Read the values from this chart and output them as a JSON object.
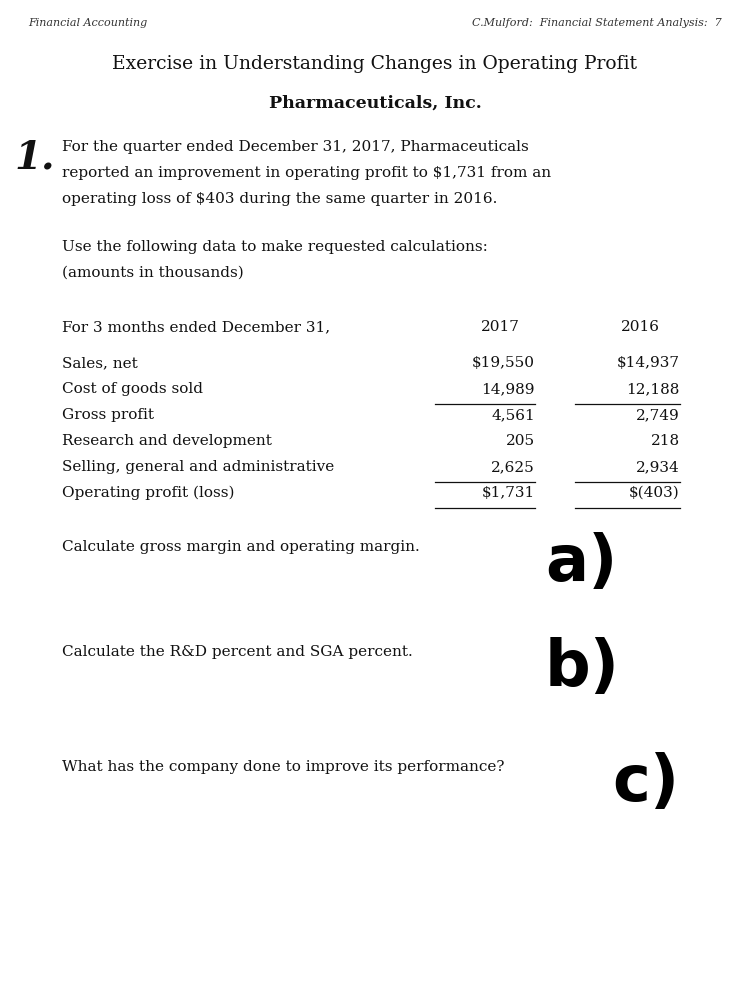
{
  "bg_color": "#ffffff",
  "header_left": "Financial Accounting",
  "header_right": "C.Mulford:  Financial Statement Analysis:  7",
  "title1": "Exercise in Understanding Changes in Operating Profit",
  "title2": "Pharmaceuticals, Inc.",
  "intro_number": "1.",
  "intro_text_lines": [
    "For the quarter ended December 31, 2017, Pharmaceuticals",
    "reported an improvement in operating profit to $1,731 from an",
    "operating loss of $403 during the same quarter in 2016."
  ],
  "use_text_lines": [
    "Use the following data to make requested calculations:",
    "(amounts in thousands)"
  ],
  "table_header_label": "For 3 months ended December 31,",
  "col2017": "2017",
  "col2016": "2016",
  "rows": [
    {
      "label": "Sales, net",
      "v2017": "$19,550",
      "v2016": "$14,937",
      "underline2017": false,
      "underline2016": false
    },
    {
      "label": "Cost of goods sold",
      "v2017": "14,989",
      "v2016": "12,188",
      "underline2017": true,
      "underline2016": true
    },
    {
      "label": "Gross profit",
      "v2017": "4,561",
      "v2016": "2,749",
      "underline2017": false,
      "underline2016": false
    },
    {
      "label": "Research and development",
      "v2017": "205",
      "v2016": "218",
      "underline2017": false,
      "underline2016": false
    },
    {
      "label": "Selling, general and administrative",
      "v2017": "2,625",
      "v2016": "2,934",
      "underline2017": true,
      "underline2016": true
    },
    {
      "label": "Operating profit (loss)",
      "v2017": "$1,731",
      "v2016": "$(403)",
      "underline2017": true,
      "underline2016": true
    }
  ],
  "label_a": "Calculate gross margin and operating margin.",
  "label_b": "Calculate the R&D percent and SGA percent.",
  "label_c": "What has the company done to improve its performance?",
  "q_a": "a)",
  "q_b": "b)",
  "q_c": "c)"
}
